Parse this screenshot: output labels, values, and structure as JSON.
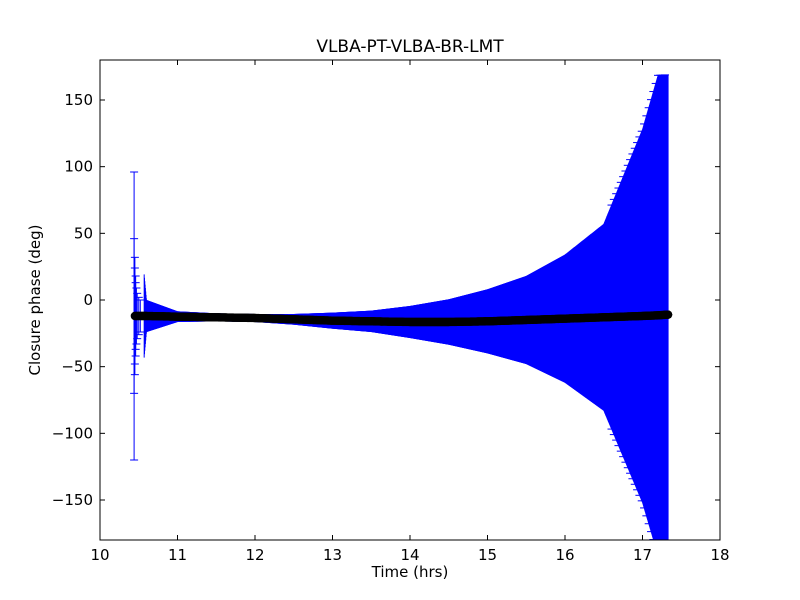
{
  "chart_data": {
    "type": "scatter",
    "title": "VLBA-PT-VLBA-BR-LMT",
    "xlabel": "Time (hrs)",
    "ylabel": "Closure phase (deg)",
    "xlim": [
      10,
      18
    ],
    "ylim": [
      -180,
      180
    ],
    "xticks": [
      10,
      11,
      12,
      13,
      14,
      15,
      16,
      17,
      18
    ],
    "yticks": [
      150,
      100,
      50,
      0,
      -50,
      -100,
      -150
    ],
    "ytick_labels": [
      "150",
      "100",
      "50",
      "0",
      "−50",
      "−100",
      "−150"
    ],
    "grid": false,
    "colors": {
      "points": "#000000",
      "errorbars": "#0000ff"
    },
    "series": [
      {
        "x": [
          10.45,
          10.6,
          11.0,
          11.5,
          12.0,
          12.5,
          13.0,
          13.5,
          14.0,
          14.5,
          15.0,
          15.5,
          16.0,
          16.5,
          17.0,
          17.2,
          17.33
        ],
        "y": [
          -12,
          -12,
          -12.5,
          -13,
          -13.5,
          -14.5,
          -15.5,
          -16,
          -16.5,
          -16.5,
          -16,
          -15,
          -14,
          -13,
          -12,
          -11.5,
          -11
        ],
        "yerr": [
          108,
          12,
          4,
          3,
          3,
          4,
          6,
          8,
          12,
          17,
          24,
          33,
          48,
          70,
          140,
          180,
          180
        ]
      }
    ]
  }
}
